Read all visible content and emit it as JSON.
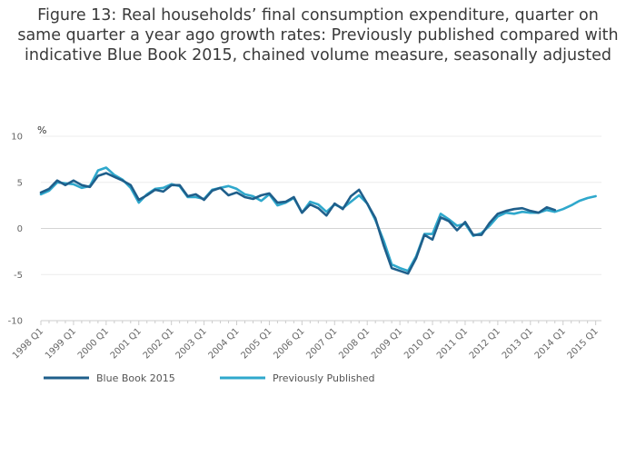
{
  "title_lines": [
    "Figure 13: Real households’ final consumption expenditure, quarter on",
    "same quarter a year ago growth rates: Previously published compared with",
    "indicative Blue Book 2015, chained volume measure, seasonally adjusted"
  ],
  "chart_data": {
    "type": "line",
    "title": "Figure 13: Real households’ final consumption expenditure, quarter on same quarter a year ago growth rates: Previously published compared with indicative Blue Book 2015, chained volume measure, seasonally adjusted",
    "ylabel": "%",
    "ylim": [
      -10,
      10
    ],
    "yticks": [
      10,
      5,
      0,
      -5,
      -10
    ],
    "xtick_labels": [
      "1998 Q1",
      "1999 Q1",
      "2000 Q1",
      "2001 Q1",
      "2002 Q1",
      "2003 Q1",
      "2004 Q1",
      "2005 Q1",
      "2006 Q1",
      "2007 Q1",
      "2008 Q1",
      "2009 Q1",
      "2010 Q1",
      "2011 Q1",
      "2012 Q1",
      "2013 Q1",
      "2014 Q1",
      "2015 Q1"
    ],
    "grid": "horizontal",
    "legend_position": "bottom-left",
    "x_start": "1998 Q1",
    "series": [
      {
        "name": "Blue Book 2015",
        "color": "#1f5f8b",
        "values": [
          3.9,
          4.3,
          5.2,
          4.7,
          5.2,
          4.7,
          4.5,
          5.7,
          6.0,
          5.6,
          5.2,
          4.7,
          3.1,
          3.6,
          4.2,
          4.0,
          4.7,
          4.7,
          3.5,
          3.7,
          3.1,
          4.1,
          4.4,
          3.6,
          3.9,
          3.4,
          3.2,
          3.6,
          3.8,
          2.8,
          2.9,
          3.4,
          1.7,
          2.6,
          2.2,
          1.4,
          2.7,
          2.1,
          3.5,
          4.2,
          2.7,
          1.1,
          -1.8,
          -4.3,
          -4.6,
          -4.9,
          -3.2,
          -0.7,
          -1.2,
          1.2,
          0.8,
          -0.2,
          0.7,
          -0.7,
          -0.7,
          0.6,
          1.6,
          1.9,
          2.1,
          2.2,
          1.9,
          1.7,
          2.3,
          2.0
        ]
      },
      {
        "name": "Previously Published",
        "color": "#2fa8cc",
        "values": [
          3.7,
          4.1,
          5.0,
          4.9,
          4.8,
          4.4,
          4.6,
          6.3,
          6.6,
          5.8,
          5.3,
          4.4,
          2.8,
          3.7,
          4.3,
          4.4,
          4.8,
          4.6,
          3.4,
          3.4,
          3.2,
          4.2,
          4.4,
          4.6,
          4.3,
          3.7,
          3.5,
          3.0,
          3.7,
          2.5,
          2.8,
          3.3,
          1.7,
          2.9,
          2.6,
          1.8,
          2.6,
          2.2,
          2.9,
          3.6,
          2.7,
          0.9,
          -1.3,
          -3.9,
          -4.3,
          -4.6,
          -3.0,
          -0.6,
          -0.6,
          1.6,
          1.0,
          0.3,
          0.5,
          -0.8,
          -0.5,
          0.3,
          1.3,
          1.7,
          1.6,
          1.8,
          1.7,
          1.7,
          2.0,
          1.8,
          2.1,
          2.5,
          3.0,
          3.3,
          3.5
        ]
      }
    ]
  }
}
